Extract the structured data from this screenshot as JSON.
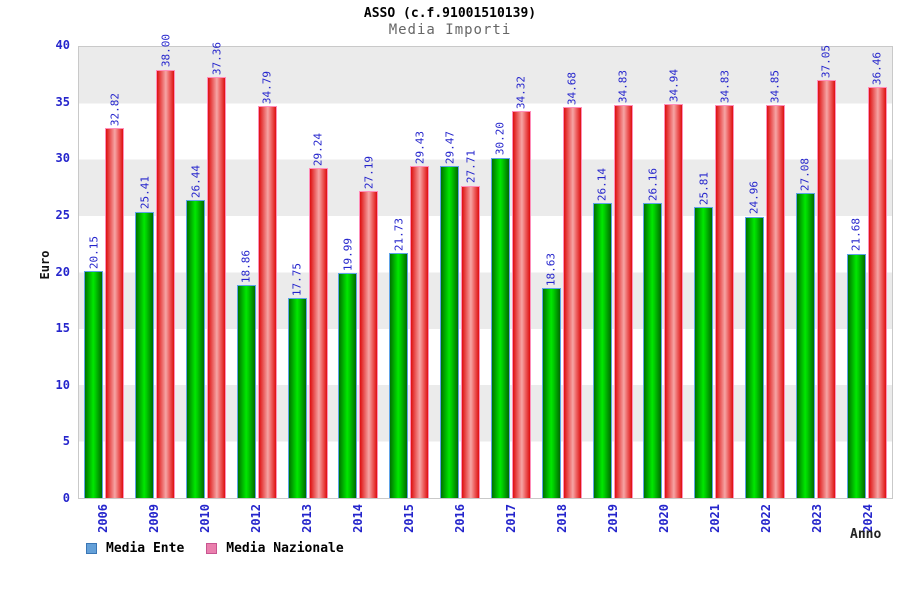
{
  "header": {
    "title": "ASSO (c.f.91001510139)",
    "subtitle": "Media Importi"
  },
  "chart_data": {
    "type": "bar",
    "title": "ASSO (c.f.91001510139)",
    "subtitle": "Media Importi",
    "xlabel": "Anno",
    "ylabel": "Euro",
    "ylim": [
      0,
      40
    ],
    "yticks": [
      0,
      5,
      10,
      15,
      20,
      25,
      30,
      35,
      40
    ],
    "grid": "horizontal-bands-every-5",
    "legend_position": "bottom-left",
    "categories": [
      "2006",
      "2009",
      "2010",
      "2012",
      "2013",
      "2014",
      "2015",
      "2016",
      "2017",
      "2018",
      "2019",
      "2020",
      "2021",
      "2022",
      "2023",
      "2024"
    ],
    "series": [
      {
        "name": "Media Ente",
        "values": [
          20.15,
          25.41,
          26.44,
          18.86,
          17.75,
          19.99,
          21.73,
          29.47,
          30.2,
          18.63,
          26.14,
          26.16,
          25.81,
          24.96,
          27.08,
          21.68
        ]
      },
      {
        "name": "Media Nazionale",
        "values": [
          32.82,
          38.0,
          37.36,
          34.79,
          29.24,
          27.19,
          29.43,
          27.71,
          34.32,
          34.68,
          34.83,
          34.94,
          34.83,
          34.85,
          37.05,
          36.46
        ]
      }
    ]
  },
  "colors": {
    "value_label_blue": "#2525cc",
    "axis_tick_blue": "#2525cc",
    "ente_bar_fill": "#00e800",
    "ente_bar_border": "#5fa3e8",
    "naz_bar_fill": "#de0f0f",
    "naz_bar_border": "#ff8fbb",
    "legend_ente_swatch": "#64a0d8",
    "legend_naz_swatch": "#ea7fad",
    "band_gray": "#ebebeb",
    "subtitle_gray": "#666666"
  }
}
